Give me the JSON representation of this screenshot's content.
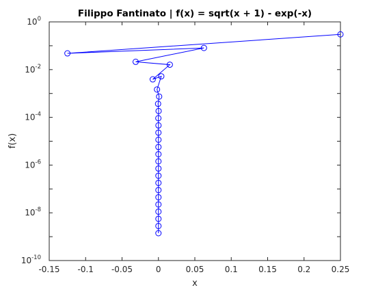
{
  "chart_data": {
    "type": "line",
    "title": "Filippo Fantinato | f(x) = sqrt(x + 1) - exp(-x)",
    "xlabel": "x",
    "ylabel": "f(x)",
    "xlim": [
      -0.15,
      0.25
    ],
    "ylim": [
      1e-10,
      1
    ],
    "yscale": "log",
    "grid": false,
    "legend": "none",
    "x_ticks": [
      "-0.15",
      "-0.1",
      "-0.05",
      "0",
      "0.05",
      "0.1",
      "0.15",
      "0.2",
      "0.25"
    ],
    "y_ticks": [
      {
        "base": "10",
        "exp": "0"
      },
      {
        "base": "10",
        "exp": "-2"
      },
      {
        "base": "10",
        "exp": "-4"
      },
      {
        "base": "10",
        "exp": "-6"
      },
      {
        "base": "10",
        "exp": "-8"
      },
      {
        "base": "10",
        "exp": "-10"
      }
    ],
    "series": [
      {
        "color": "#0000ff",
        "marker": "circle",
        "x": [
          0.25,
          -0.125,
          0.0625,
          -0.03125,
          0.015625,
          -0.0078125,
          0.00390625,
          -0.001953,
          0.0009766,
          -0.000488,
          0.000244,
          -0.000122,
          6.1e-05,
          -3.05e-05,
          1.53e-05,
          -7.6e-06,
          3.8e-06,
          -1.9e-06,
          9.5e-07,
          -4.8e-07,
          2.4e-07,
          -1.2e-07,
          6e-08,
          -3e-08,
          1.5e-08,
          -7.5e-09,
          3.7e-09,
          -1.9e-09
        ],
        "y": [
          0.3,
          0.048,
          0.0809,
          0.0212,
          0.0161,
          0.00391,
          0.00525,
          0.00147,
          0.000742,
          0.000369,
          0.000184,
          9.19e-05,
          4.59e-05,
          2.29e-05,
          1.15e-05,
          5.73e-06,
          2.86e-06,
          1.43e-06,
          7.16e-07,
          3.58e-07,
          1.79e-07,
          8.95e-08,
          4.48e-08,
          2.24e-08,
          1.12e-08,
          5.6e-09,
          2.8e-09,
          1.4e-09
        ]
      }
    ]
  }
}
